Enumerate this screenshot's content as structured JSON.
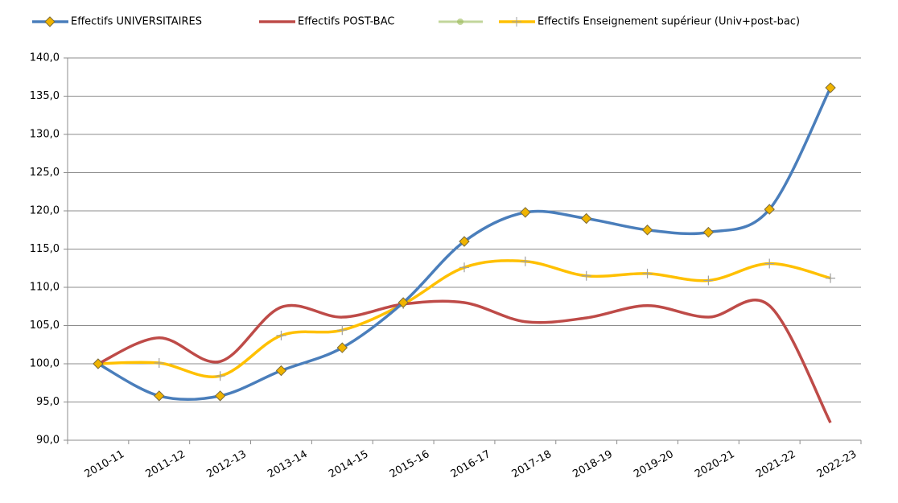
{
  "chart_data": {
    "type": "line",
    "categories": [
      "2010-11",
      "2011-12",
      "2012-13",
      "2013-14",
      "2014-15",
      "2015-16",
      "2016-17",
      "2017-18",
      "2018-19",
      "2019-20",
      "2020-21",
      "2021-22",
      "2022-23"
    ],
    "series": [
      {
        "name": "Effectifs UNIVERSITAIRES",
        "color": "#4a7ebb",
        "marker": "diamond",
        "values": [
          100.0,
          95.8,
          95.8,
          99.1,
          102.1,
          108.0,
          116.0,
          119.8,
          119.0,
          117.5,
          117.2,
          120.2,
          136.1
        ]
      },
      {
        "name": "Effectifs POST-BAC",
        "color": "#be4b48",
        "marker": "none",
        "values": [
          100.0,
          103.4,
          100.3,
          107.4,
          106.1,
          107.8,
          108.0,
          105.5,
          106.0,
          107.6,
          106.1,
          107.6,
          92.3
        ]
      },
      {
        "name": "Effectifs Enseignement supérieur (Univ+post-bac)",
        "color": "#ffc000",
        "marker": "plus",
        "values": [
          100.0,
          100.1,
          98.4,
          103.7,
          104.4,
          107.8,
          112.6,
          113.4,
          111.5,
          111.8,
          110.9,
          113.1,
          111.2
        ]
      }
    ],
    "ylim": [
      90,
      140
    ],
    "yticks": [
      {
        "value": 90,
        "label": "90,0"
      },
      {
        "value": 95,
        "label": "95,0"
      },
      {
        "value": 100,
        "label": "100,0"
      },
      {
        "value": 105,
        "label": "105,0"
      },
      {
        "value": 110,
        "label": "110,0"
      },
      {
        "value": 115,
        "label": "115,0"
      },
      {
        "value": 120,
        "label": "120,0"
      },
      {
        "value": 125,
        "label": "125,0"
      },
      {
        "value": 130,
        "label": "130,0"
      },
      {
        "value": 135,
        "label": "135,0"
      },
      {
        "value": 140,
        "label": "140,0"
      }
    ],
    "grid": true,
    "smooth": true
  }
}
